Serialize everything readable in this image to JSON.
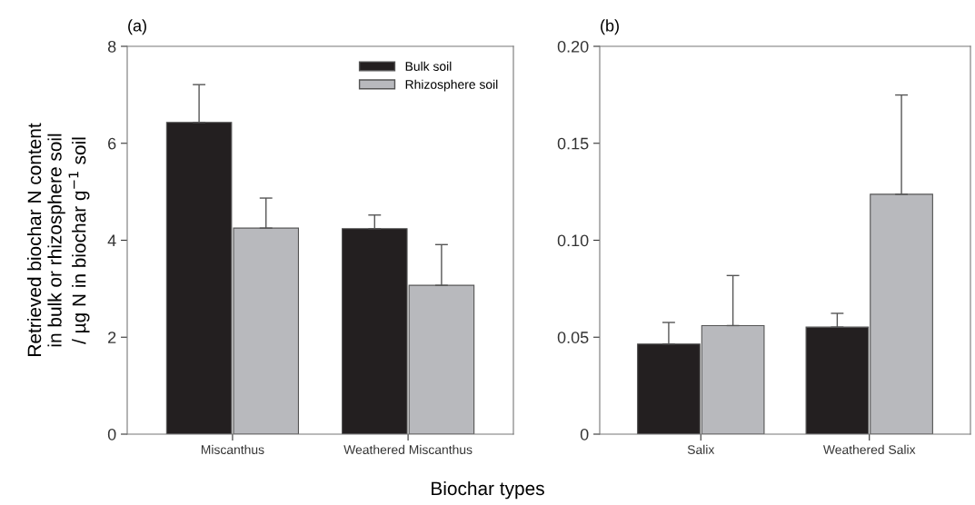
{
  "chart_data": [
    {
      "type": "bar",
      "title": "(a)",
      "ylabel": "Retrieved biochar N content\nin bulk or rhizosphere soil\n/ µg N in biochar g$^{−1}$ soil",
      "xlabel": "Biochar types",
      "categories": [
        "Miscanthus",
        "Weathered Miscanthus"
      ],
      "series": [
        {
          "name": "Bulk soil",
          "color": "#231f20",
          "values": [
            6.43,
            4.24
          ],
          "errors": [
            [
              6.43,
              7.21
            ],
            [
              4.24,
              4.52
            ]
          ]
        },
        {
          "name": "Rhizosphere soil",
          "color": "#b8b9bd",
          "values": [
            4.25,
            3.07
          ],
          "errors": [
            [
              4.25,
              4.87
            ],
            [
              3.07,
              3.91
            ]
          ]
        }
      ],
      "ylim": [
        0,
        8
      ],
      "yticks": [
        0,
        2,
        4,
        6,
        8
      ],
      "legend": "top right",
      "grid": false
    },
    {
      "type": "bar",
      "title": "(b)",
      "categories": [
        "Salix",
        "Weathered Salix"
      ],
      "series": [
        {
          "color": "#231f20",
          "values": [
            0.0465,
            0.0552
          ],
          "errors": [
            [
              0.0465,
              0.0576
            ],
            [
              0.0552,
              0.0623
            ]
          ]
        },
        {
          "color": "#b8b9bd",
          "values": [
            0.056,
            0.1237
          ],
          "errors": [
            [
              0.056,
              0.0818
            ],
            [
              0.1237,
              0.1749
            ]
          ]
        }
      ],
      "ylim": [
        0,
        0.2
      ],
      "yticks": [
        {
          "value": 0,
          "label": "0"
        },
        {
          "value": 0.05,
          "label": "0.05"
        },
        {
          "value": 0.1,
          "label": "0.10"
        },
        {
          "value": 0.15,
          "label": "0.15"
        },
        {
          "value": 0.2,
          "label": "0.20"
        }
      ],
      "grid": false
    }
  ]
}
